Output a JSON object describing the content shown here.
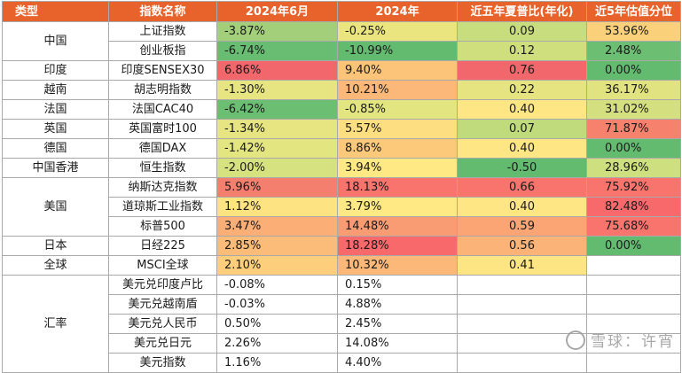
{
  "headers": [
    "类型",
    "指数名称",
    "2024年6月",
    "2024年",
    "近五年夏普比(年化)",
    "近5年估值分位"
  ],
  "rows": [
    {
      "region": "中国",
      "span": 2,
      "name": "上证指数",
      "m": "-3.87%",
      "y": "-0.25%",
      "s": "0.09",
      "v": "53.96%",
      "mc": "#a3cf7a",
      "yc": "#ebe57f",
      "sc": "#c8dd7e",
      "vc": "#fbd07b"
    },
    {
      "name": "创业板指",
      "m": "-6.74%",
      "y": "-10.99%",
      "s": "0.12",
      "v": "2.48%",
      "mc": "#68bd72",
      "yc": "#62bb6f",
      "sc": "#cfdf7e",
      "vc": "#6cbe72"
    },
    {
      "region": "印度",
      "span": 1,
      "name": "印度SENSEX30",
      "m": "6.86%",
      "y": "9.40%",
      "s": "0.76",
      "v": "0.00%",
      "mc": "#f1676b",
      "yc": "#fbc479",
      "sc": "#f1676b",
      "vc": "#63bb6f"
    },
    {
      "region": "越南",
      "span": 1,
      "name": "胡志明指数",
      "m": "-1.30%",
      "y": "10.21%",
      "s": "0.22",
      "v": "36.17%",
      "mc": "#e6e581",
      "yc": "#fbb878",
      "sc": "#e6e481",
      "vc": "#e1e381"
    },
    {
      "region": "法国",
      "span": 1,
      "name": "法国CAC40",
      "m": "-6.42%",
      "y": "-0.85%",
      "s": "0.40",
      "v": "31.02%",
      "mc": "#6cbe72",
      "yc": "#e3e581",
      "sc": "#fde683",
      "vc": "#d4e07f"
    },
    {
      "region": "英国",
      "span": 1,
      "name": "英国富时100",
      "m": "-1.34%",
      "y": "5.57%",
      "s": "0.07",
      "v": "71.87%",
      "mc": "#e6e581",
      "yc": "#fddf81",
      "sc": "#bfdb7c",
      "vc": "#f6826e"
    },
    {
      "region": "德国",
      "span": 1,
      "name": "德国DAX",
      "m": "-1.42%",
      "y": "8.86%",
      "s": "0.40",
      "v": "0.00%",
      "mc": "#e3e581",
      "yc": "#fcc97a",
      "sc": "#fde683",
      "vc": "#63bb6f"
    },
    {
      "region": "中国香港",
      "span": 1,
      "name": "恒生指数",
      "m": "-2.00%",
      "y": "3.94%",
      "s": "-0.50",
      "v": "28.96%",
      "mc": "#d6e27f",
      "yc": "#fee984",
      "sc": "#63bb6f",
      "vc": "#cddf7e"
    },
    {
      "region": "美国",
      "span": 3,
      "name": "纳斯达克指数",
      "m": "5.96%",
      "y": "18.13%",
      "s": "0.66",
      "v": "75.92%",
      "mc": "#f57f6e",
      "yc": "#f8746d",
      "sc": "#f8746d",
      "vc": "#f8746d"
    },
    {
      "name": "道琼斯工业指数",
      "m": "1.12%",
      "y": "3.79%",
      "s": "0.40",
      "v": "82.48%",
      "mc": "#fee383",
      "yc": "#fee984",
      "sc": "#fde683",
      "vc": "#f8696b"
    },
    {
      "name": "标普500",
      "m": "3.47%",
      "y": "14.48%",
      "s": "0.59",
      "v": "75.68%",
      "mc": "#fbae76",
      "yc": "#f99c73",
      "sc": "#fba575",
      "vc": "#f8746d"
    },
    {
      "region": "日本",
      "span": 1,
      "name": "日经225",
      "m": "2.85%",
      "y": "18.28%",
      "s": "0.56",
      "v": "0.00%",
      "mc": "#fcbc79",
      "yc": "#f8696b",
      "sc": "#fbb377",
      "vc": "#63bb6f"
    },
    {
      "region": "全球",
      "span": 1,
      "name": "MSCI全球",
      "m": "2.10%",
      "y": "10.32%",
      "s": "0.41",
      "v": "",
      "mc": "#fdcf7c",
      "yc": "#fbb878",
      "sc": "#fde583",
      "vc": "#ffffff"
    },
    {
      "region": "汇率",
      "span": 5,
      "name": "美元兑印度卢比",
      "m": "-0.08%",
      "y": "0.15%",
      "s": "",
      "v": "",
      "mc": "#ffffff",
      "yc": "#ffffff",
      "sc": "#ffffff",
      "vc": "#ffffff"
    },
    {
      "name": "美元兑越南盾",
      "m": "-0.03%",
      "y": "4.88%",
      "s": "",
      "v": "",
      "mc": "#ffffff",
      "yc": "#ffffff",
      "sc": "#ffffff",
      "vc": "#ffffff"
    },
    {
      "name": "美元兑人民币",
      "m": "0.50%",
      "y": "2.45%",
      "s": "",
      "v": "",
      "mc": "#ffffff",
      "yc": "#ffffff",
      "sc": "#ffffff",
      "vc": "#ffffff"
    },
    {
      "name": "美元兑日元",
      "m": "2.26%",
      "y": "14.08%",
      "s": "",
      "v": "",
      "mc": "#ffffff",
      "yc": "#ffffff",
      "sc": "#ffffff",
      "vc": "#ffffff"
    },
    {
      "name": "美元指数",
      "m": "1.16%",
      "y": "4.40%",
      "s": "",
      "v": "",
      "mc": "#ffffff",
      "yc": "#ffffff",
      "sc": "#ffffff",
      "vc": "#ffffff"
    }
  ],
  "watermark": "雪球：许宵",
  "watermark_icon": "snowball-logo-icon",
  "header_color": "#e8632b"
}
